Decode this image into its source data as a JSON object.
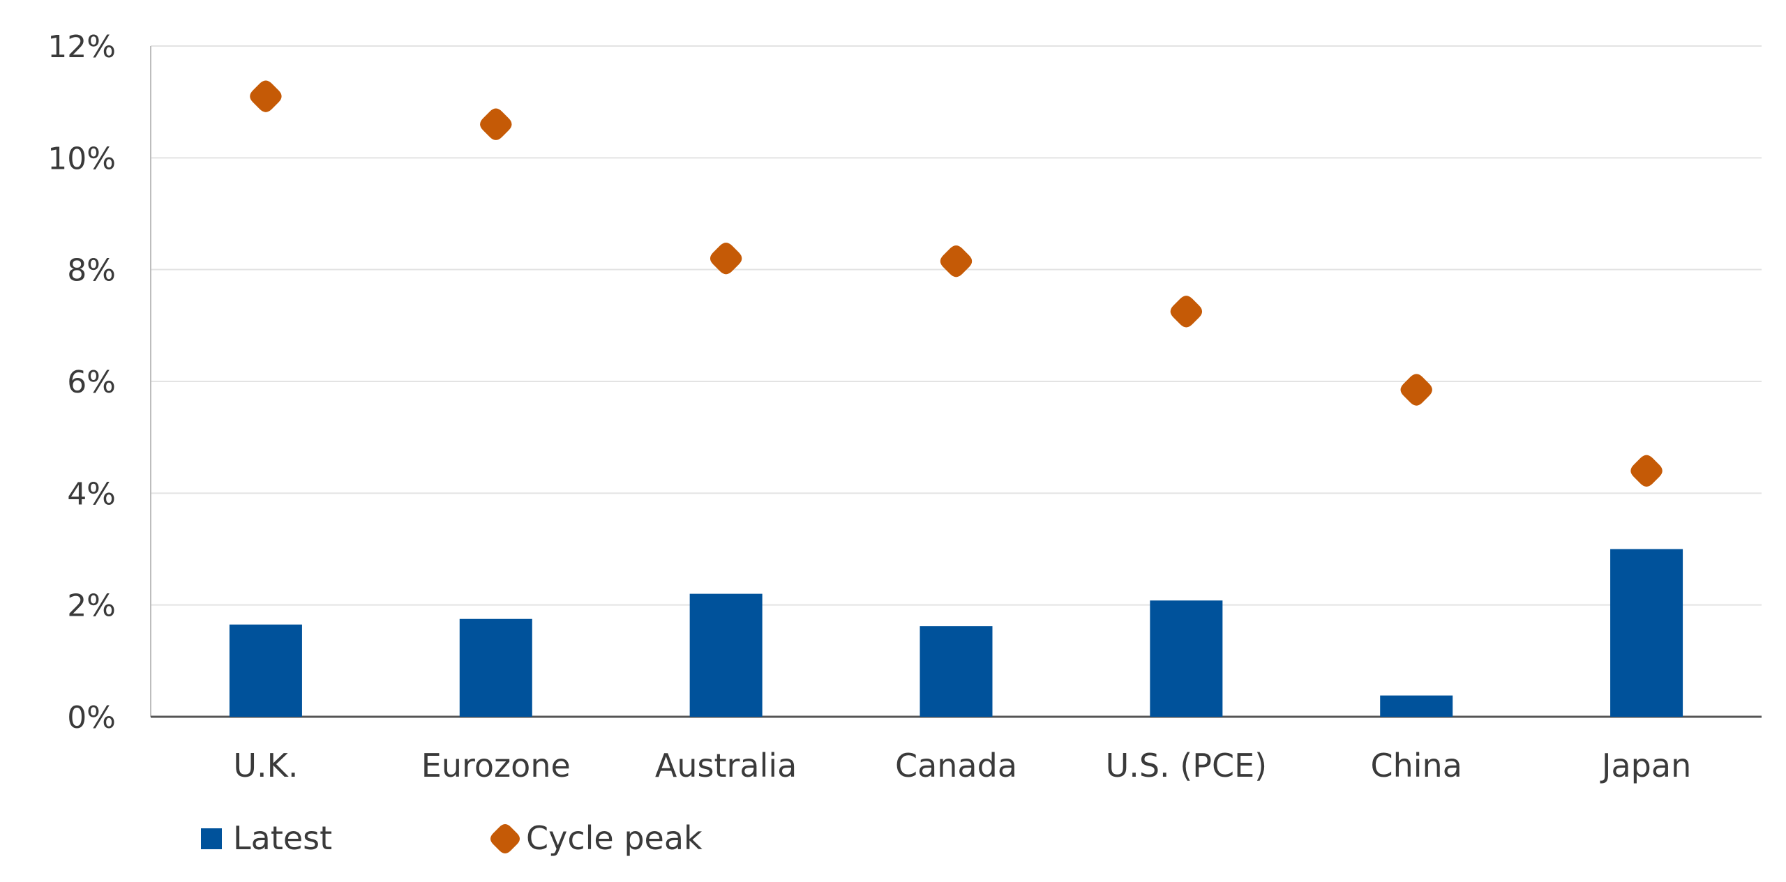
{
  "chart_data": {
    "type": "bar",
    "title": "",
    "xlabel": "",
    "ylabel": "",
    "categories": [
      "U.K.",
      "Eurozone",
      "Australia",
      "Canada",
      "U.S. (PCE)",
      "China",
      "Japan"
    ],
    "ylim": [
      0,
      12
    ],
    "yticks": [
      0,
      2,
      4,
      6,
      8,
      10,
      12
    ],
    "ytick_labels": [
      "0%",
      "2%",
      "4%",
      "6%",
      "8%",
      "10%",
      "12%"
    ],
    "grid": true,
    "legend_position": "bottom-left",
    "series": [
      {
        "name": "Latest",
        "kind": "bar",
        "color": "#00529b",
        "values": [
          1.65,
          1.75,
          2.2,
          1.62,
          2.08,
          0.38,
          3.0
        ]
      },
      {
        "name": "Cycle peak",
        "kind": "diamond-marker",
        "color": "#c55a06",
        "values": [
          11.1,
          10.6,
          8.2,
          8.15,
          7.25,
          5.85,
          4.4
        ]
      }
    ]
  }
}
